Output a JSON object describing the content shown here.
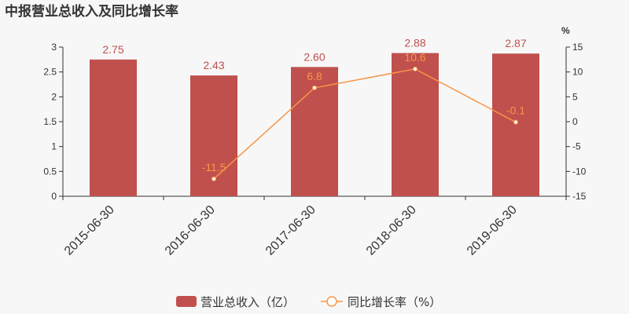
{
  "title": "中报营业总收入及同比增长率",
  "colors": {
    "bar": "#c0504d",
    "line": "#f79646",
    "bar_label": "#c0504d",
    "line_label": "#f79646",
    "axis": "#333333"
  },
  "chart_data": {
    "type": "bar+line",
    "categories": [
      "2015-06-30",
      "2016-06-30",
      "2017-06-30",
      "2018-06-30",
      "2019-06-30"
    ],
    "series": [
      {
        "name": "营业总收入（亿）",
        "type": "bar",
        "axis": "left",
        "values": [
          2.75,
          2.43,
          2.6,
          2.88,
          2.87
        ],
        "labels": [
          "2.75",
          "2.43",
          "2.60",
          "2.88",
          "2.87"
        ]
      },
      {
        "name": "同比增长率（%）",
        "type": "line",
        "axis": "right",
        "values": [
          null,
          -11.5,
          6.8,
          10.6,
          -0.1
        ],
        "labels": [
          "",
          "-11.5",
          "6.8",
          "10.6",
          "-0.1"
        ]
      }
    ],
    "y_left": {
      "lim": [
        0,
        3
      ],
      "ticks": [
        "0",
        "0.5",
        "1",
        "1.5",
        "2",
        "2.5",
        "3"
      ]
    },
    "y_right": {
      "lim": [
        -15,
        15
      ],
      "ticks": [
        "-15",
        "-10",
        "-5",
        "0",
        "5",
        "10",
        "15"
      ],
      "unit": "%"
    },
    "legend_position": "bottom-center",
    "grid": false
  }
}
